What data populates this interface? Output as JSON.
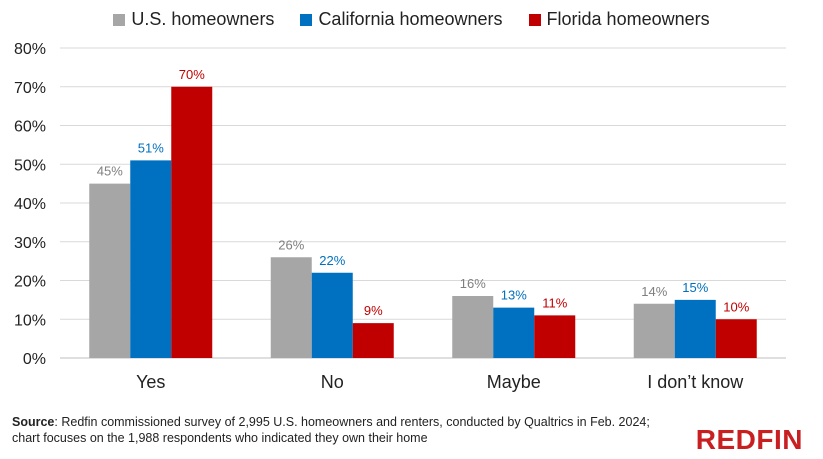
{
  "chart_data": {
    "type": "bar",
    "categories": [
      "Yes",
      "No",
      "Maybe",
      "I don’t know"
    ],
    "series": [
      {
        "name": "U.S. homeowners",
        "values": [
          45,
          26,
          16,
          14
        ],
        "labels": [
          "45%",
          "26%",
          "16%",
          "14%"
        ],
        "color": "#a6a6a6",
        "label_color": "#7f7f7f"
      },
      {
        "name": "California homeowners",
        "values": [
          51,
          22,
          13,
          15
        ],
        "labels": [
          "51%",
          "22%",
          "13%",
          "15%"
        ],
        "color": "#0070c0",
        "label_color": "#0070c0"
      },
      {
        "name": "Florida homeowners",
        "values": [
          70,
          9,
          11,
          10
        ],
        "labels": [
          "70%",
          "9%",
          "11%",
          "10%"
        ],
        "color": "#c00000",
        "label_color": "#c00000"
      }
    ],
    "ylim": [
      0,
      80
    ],
    "yticks": [
      0,
      10,
      20,
      30,
      40,
      50,
      60,
      70,
      80
    ],
    "ytick_labels": [
      "0%",
      "10%",
      "20%",
      "30%",
      "40%",
      "50%",
      "60%",
      "70%",
      "80%"
    ],
    "grid": true,
    "legend_position": "top-center"
  },
  "footer": {
    "source_label": "Source",
    "source_text": ": Redfin commissioned survey of 2,995 U.S. homeowners and renters, conducted by Qualtrics in Feb. 2024; chart focuses on the 1,988 respondents who indicated they own their home",
    "logo_text": "REDFIN"
  }
}
